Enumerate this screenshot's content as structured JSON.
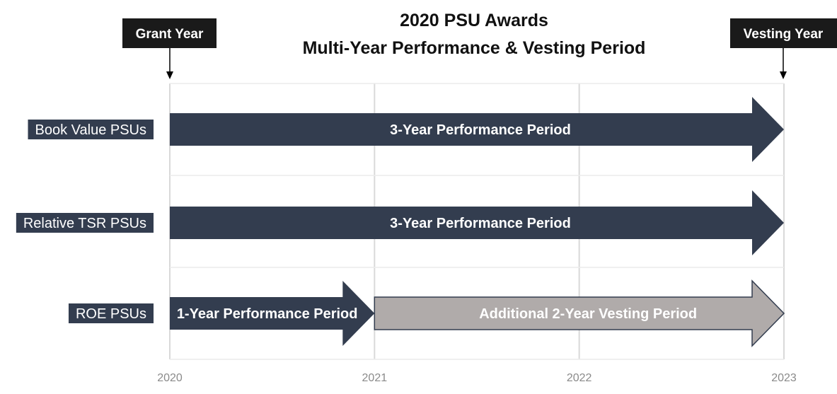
{
  "title": {
    "line1": "2020 PSU Awards",
    "line2": "Multi-Year Performance & Vesting Period"
  },
  "markers": {
    "grant": {
      "label": "Grant Year",
      "year": 2020
    },
    "vesting": {
      "label": "Vesting Year",
      "year": 2023
    }
  },
  "axis": {
    "ticks": [
      "2020",
      "2021",
      "2022",
      "2023"
    ],
    "range": [
      2020,
      2023
    ]
  },
  "colors": {
    "performance": "#333d4f",
    "vesting": "#b0abaa",
    "label_bg": "#333d4f",
    "tag_bg": "#1a1a1a",
    "grid": "#d9d9d9"
  },
  "rows": [
    {
      "label": "Book Value PSUs",
      "segments": [
        {
          "start": 2020,
          "end": 2023,
          "text": "3-Year Performance Period",
          "kind": "performance"
        }
      ]
    },
    {
      "label": "Relative TSR PSUs",
      "segments": [
        {
          "start": 2020,
          "end": 2023,
          "text": "3-Year Performance Period",
          "kind": "performance"
        }
      ]
    },
    {
      "label": "ROE PSUs",
      "segments": [
        {
          "start": 2021,
          "end": 2023,
          "text": "Additional 2-Year Vesting Period",
          "kind": "vesting"
        },
        {
          "start": 2020,
          "end": 2021,
          "text": "1-Year Performance Period",
          "kind": "performance"
        }
      ]
    }
  ]
}
